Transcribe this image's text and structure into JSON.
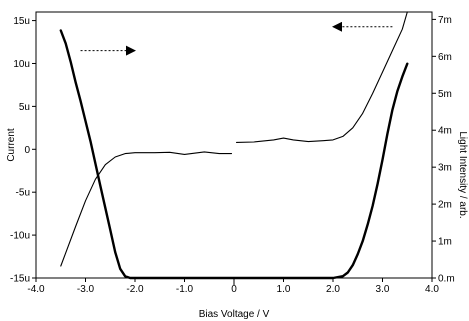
{
  "chart_data": {
    "type": "line",
    "title": "",
    "xlabel": "Bias Voltage / V",
    "ylabel_left": "Current",
    "ylabel_right": "Light Intensity / arb.",
    "xlim": [
      -4.0,
      4.0
    ],
    "ylim_left": [
      -15,
      16
    ],
    "ylim_right": [
      0,
      7.2
    ],
    "xticks": [
      {
        "value": -4.0,
        "label": "-4.0"
      },
      {
        "value": -3.0,
        "label": "-3.0"
      },
      {
        "value": -2.0,
        "label": "-2.0"
      },
      {
        "value": -1.0,
        "label": "-1.0"
      },
      {
        "value": 0.0,
        "label": "0"
      },
      {
        "value": 1.0,
        "label": "1.0"
      },
      {
        "value": 2.0,
        "label": "2.0"
      },
      {
        "value": 3.0,
        "label": "3.0"
      },
      {
        "value": 4.0,
        "label": "4.0"
      }
    ],
    "yticks_left": [
      {
        "value": 15,
        "label": "15u"
      },
      {
        "value": 10,
        "label": "10u"
      },
      {
        "value": 5,
        "label": "5u"
      },
      {
        "value": 0,
        "label": "0"
      },
      {
        "value": -5,
        "label": "-5u"
      },
      {
        "value": -10,
        "label": "-10u"
      },
      {
        "value": -15,
        "label": "-15u"
      }
    ],
    "yticks_right": [
      {
        "value": 7,
        "label": "7m"
      },
      {
        "value": 6,
        "label": "6m"
      },
      {
        "value": 5,
        "label": "5m"
      },
      {
        "value": 4,
        "label": "4m"
      },
      {
        "value": 3,
        "label": "3m"
      },
      {
        "value": 2,
        "label": "2m"
      },
      {
        "value": 1,
        "label": "1m"
      },
      {
        "value": 0,
        "label": "0.m"
      }
    ],
    "grid": false,
    "legend": "none",
    "series": [
      {
        "axis": "left",
        "x": [
          -3.5,
          -3.2,
          -3.0,
          -2.8,
          -2.6,
          -2.4,
          -2.2,
          -2.0,
          -1.6,
          -1.3,
          -1.0,
          -0.6,
          -0.3,
          -0.05
        ],
        "y": [
          -13.6,
          -9.0,
          -6.0,
          -3.5,
          -1.8,
          -0.9,
          -0.5,
          -0.4,
          -0.4,
          -0.35,
          -0.6,
          -0.3,
          -0.5,
          -0.5
        ]
      },
      {
        "axis": "left",
        "x": [
          0.05,
          0.4,
          0.8,
          1.0,
          1.2,
          1.5,
          1.8,
          2.0,
          2.2,
          2.4,
          2.6,
          2.8,
          3.0,
          3.2,
          3.4,
          3.5
        ],
        "y": [
          0.8,
          0.85,
          1.1,
          1.3,
          1.1,
          0.9,
          1.0,
          1.1,
          1.5,
          2.5,
          4.2,
          6.5,
          9.0,
          11.5,
          14.0,
          16.0
        ]
      },
      {
        "axis": "right",
        "x": [
          -3.5,
          -3.4,
          -3.3,
          -3.2,
          -3.1,
          -3.0,
          -2.9,
          -2.8,
          -2.7,
          -2.6,
          -2.5,
          -2.4,
          -2.3,
          -2.2,
          -2.1,
          -1.5,
          -0.5,
          0.5,
          1.5,
          2.0,
          2.2,
          2.3,
          2.4,
          2.5,
          2.6,
          2.7,
          2.8,
          2.9,
          3.0,
          3.1,
          3.2,
          3.3,
          3.4,
          3.5
        ],
        "y": [
          6.7,
          6.35,
          5.85,
          5.3,
          4.8,
          4.25,
          3.7,
          3.1,
          2.5,
          1.9,
          1.3,
          0.7,
          0.25,
          0.05,
          0.0,
          0.0,
          0.0,
          0.0,
          0.0,
          0.0,
          0.05,
          0.15,
          0.35,
          0.65,
          1.0,
          1.45,
          1.95,
          2.55,
          3.2,
          3.9,
          4.55,
          5.05,
          5.45,
          5.8
        ]
      }
    ],
    "annotations": [
      {
        "type": "arrow",
        "direction": "right",
        "refers_to_axis": "left",
        "x_from": -3.1,
        "x_to": -2.0,
        "y": 11.5
      },
      {
        "type": "arrow",
        "direction": "left",
        "refers_to_axis": "right",
        "x_from": 3.2,
        "x_to": 2.0,
        "y": 6.8
      }
    ]
  }
}
